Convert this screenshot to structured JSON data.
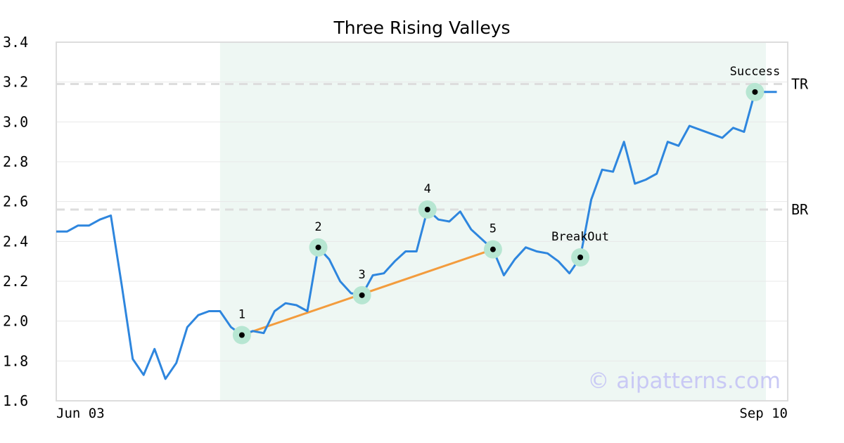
{
  "chart_data": {
    "type": "line",
    "title": "Three Rising Valleys",
    "ylim": [
      1.6,
      3.4
    ],
    "yticks": [
      "1.6",
      "1.8",
      "2.0",
      "2.2",
      "2.4",
      "2.6",
      "2.8",
      "3.0",
      "3.2",
      "3.4"
    ],
    "xticks": [
      "Jun 03",
      "Sep 10"
    ],
    "grid": true,
    "watermark": "© aipatterns.com",
    "colors": {
      "line": "#2e86de",
      "trend": "#f39c3d",
      "highlight": "#eef7f3",
      "marker_halo": "#b7e6d2",
      "level_line": "#dddddd"
    },
    "series": [
      {
        "values": [
          2.45,
          2.45,
          2.48,
          2.48,
          2.51,
          2.53,
          2.18,
          1.81,
          1.73,
          1.86,
          1.71,
          1.79,
          1.97,
          2.03,
          2.05,
          2.05,
          1.97,
          1.93,
          1.95,
          1.94,
          2.05,
          2.09,
          2.08,
          2.05,
          2.37,
          2.31,
          2.2,
          2.14,
          2.13,
          2.23,
          2.24,
          2.3,
          2.35,
          2.35,
          2.56,
          2.51,
          2.5,
          2.55,
          2.46,
          2.41,
          2.36,
          2.23,
          2.31,
          2.37,
          2.35,
          2.34,
          2.3,
          2.24,
          2.32,
          2.61,
          2.76,
          2.75,
          2.9,
          2.69,
          2.71,
          2.74,
          2.9,
          2.88,
          2.98,
          2.96,
          2.94,
          2.92,
          2.97,
          2.95,
          3.15,
          3.15,
          3.15
        ]
      }
    ],
    "highlight_range": [
      15,
      65
    ],
    "levels": [
      {
        "label": "TR",
        "value": 3.19
      },
      {
        "label": "BR",
        "value": 2.56
      }
    ],
    "trendline": [
      {
        "index": 17,
        "value": 1.93
      },
      {
        "index": 40,
        "value": 2.36
      }
    ],
    "annotations": [
      {
        "label": "1",
        "index": 17,
        "value": 1.93
      },
      {
        "label": "2",
        "index": 24,
        "value": 2.37
      },
      {
        "label": "3",
        "index": 28,
        "value": 2.13
      },
      {
        "label": "4",
        "index": 34,
        "value": 2.56
      },
      {
        "label": "5",
        "index": 40,
        "value": 2.36
      },
      {
        "label": "BreakOut",
        "index": 48,
        "value": 2.32
      },
      {
        "label": "Success",
        "index": 64,
        "value": 3.15
      }
    ]
  }
}
